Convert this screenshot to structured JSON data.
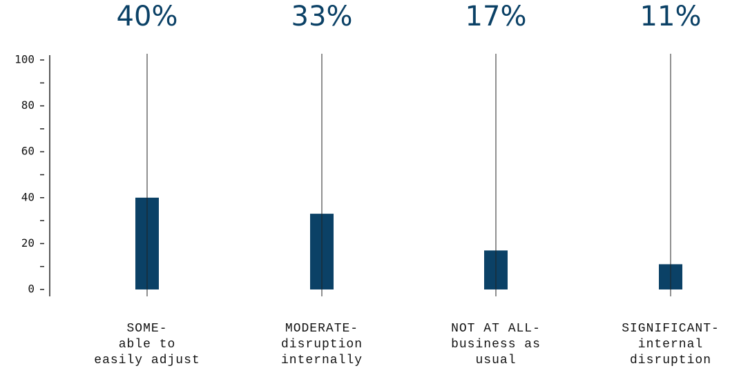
{
  "chart_data": {
    "type": "bar",
    "categories": [
      "SOME-\nable to\neasily adjust",
      "MODERATE-\ndisruption\ninternally",
      "NOT AT ALL-\nbusiness as\nusual",
      "SIGNIFICANT-\ninternal\ndisruption"
    ],
    "values": [
      40,
      33,
      17,
      11
    ],
    "value_labels": [
      "40%",
      "33%",
      "17%",
      "11%"
    ],
    "color": "#0b4166",
    "ylim": [
      0,
      100
    ],
    "yticks": [
      0,
      20,
      40,
      60,
      80,
      100
    ],
    "yminor_ticks": [
      10,
      30,
      50,
      70,
      90
    ]
  }
}
